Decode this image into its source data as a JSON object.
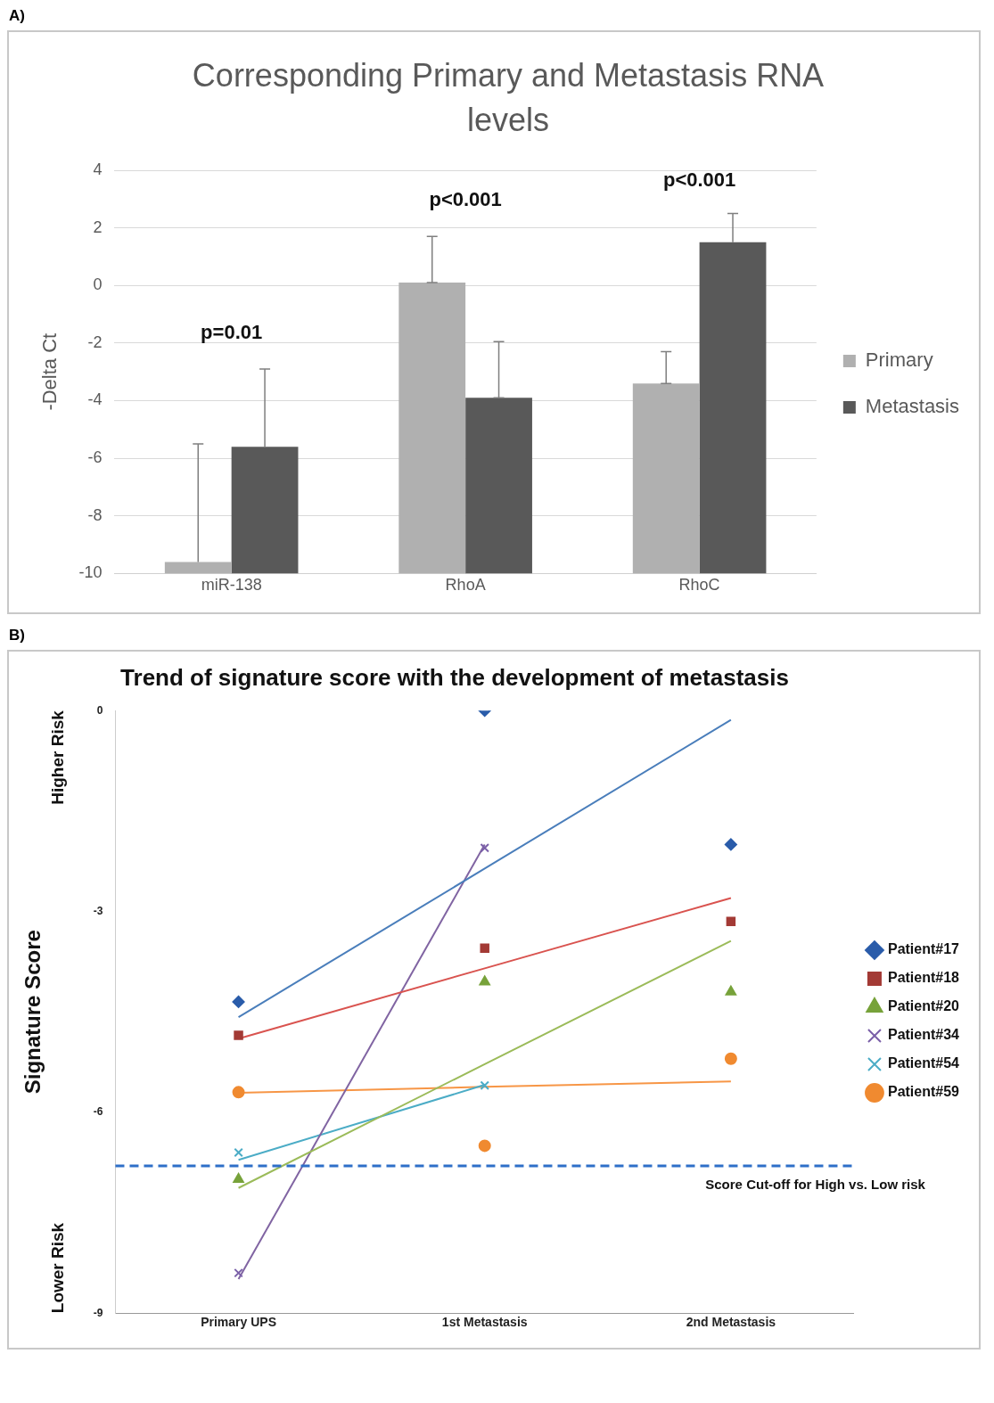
{
  "chart_data": [
    {
      "type": "bar",
      "title": "Corresponding Primary and Metastasis RNA levels",
      "ylabel": "-Delta Ct",
      "categories": [
        "miR-138",
        "RhoA",
        "RhoC"
      ],
      "series": [
        {
          "name": "Primary",
          "color": "#b0b0b0",
          "base": [
            -10,
            -10,
            -10
          ],
          "values": [
            0.4,
            10.1,
            6.6
          ],
          "errors": [
            [
              -9.6,
              -5.5
            ],
            [
              0.1,
              1.7
            ],
            [
              -3.4,
              -2.3
            ]
          ]
        },
        {
          "name": "Metastasis",
          "color": "#595959",
          "base": [
            -10,
            -10,
            -10
          ],
          "values": [
            4.4,
            6.1,
            11.5
          ],
          "errors": [
            [
              -5.6,
              -2.9
            ],
            [
              -3.9,
              -1.95
            ],
            [
              1.5,
              2.5
            ]
          ]
        }
      ],
      "ylim": [
        -10,
        4
      ],
      "yticks": [
        -10,
        -8,
        -6,
        -4,
        -2,
        0,
        2,
        4
      ],
      "grid": "y",
      "legend": "right",
      "annotations": [
        "A)",
        "p=0.01",
        "p<0.001",
        "p<0.001"
      ]
    },
    {
      "type": "scatter",
      "title": "Trend of signature score with the development of metastasis",
      "ylabel": "Signature Score",
      "categories": [
        "Primary UPS",
        "1st Metastasis",
        "2nd Metastasis"
      ],
      "ylim": [
        -9,
        0
      ],
      "yticks": [
        0,
        -3,
        -6,
        -9
      ],
      "series": [
        {
          "name": "Patient#17",
          "color": "#2a5caa",
          "marker": "diamond",
          "values": [
            -4.35,
            0,
            -2.0
          ]
        },
        {
          "name": "Patient#18",
          "color": "#a33a35",
          "marker": "square",
          "values": [
            -4.85,
            -3.55,
            -3.15
          ]
        },
        {
          "name": "Patient#20",
          "color": "#77a23a",
          "marker": "triangle",
          "values": [
            -7.0,
            -4.05,
            -4.2
          ]
        },
        {
          "name": "Patient#34",
          "color": "#7a5fa8",
          "marker": "cross",
          "values": [
            -8.4,
            -2.05,
            null
          ]
        },
        {
          "name": "Patient#54",
          "color": "#4bacc6",
          "marker": "cross",
          "values": [
            -6.6,
            -5.6,
            null
          ]
        },
        {
          "name": "Patient#59",
          "color": "#f08a30",
          "marker": "circle",
          "values": [
            -5.7,
            -6.5,
            -5.2
          ]
        },
        {
          "type": "line",
          "color": "#4a7ebb",
          "marker": "none",
          "values": [
            -4.58,
            -2.36,
            -0.14
          ]
        },
        {
          "type": "line",
          "color": "#d9534f",
          "marker": "none",
          "values": [
            -4.9,
            -3.85,
            -2.8
          ]
        },
        {
          "type": "line",
          "color": "#9bbb59",
          "marker": "none",
          "values": [
            -7.13,
            -5.28,
            -3.44
          ]
        },
        {
          "type": "line",
          "color": "#8064a2",
          "marker": "none",
          "values": [
            -8.49,
            -2.0,
            null
          ]
        },
        {
          "type": "line",
          "color": "#4bacc6",
          "marker": "none",
          "values": [
            -6.71,
            -5.59,
            null
          ]
        },
        {
          "type": "line",
          "color": "#f79646",
          "marker": "none",
          "values": [
            -5.71,
            -5.62,
            -5.54
          ]
        }
      ],
      "ref_lines": [
        {
          "axis": "y",
          "value": -6.8,
          "label": "Score Cut-off for High vs. Low risk",
          "color": "#2e6fc8",
          "line_style": "dashed"
        }
      ],
      "legend": "right",
      "grid": false,
      "annotations": [
        "B)",
        "Higher Risk",
        "Lower Risk"
      ]
    }
  ]
}
